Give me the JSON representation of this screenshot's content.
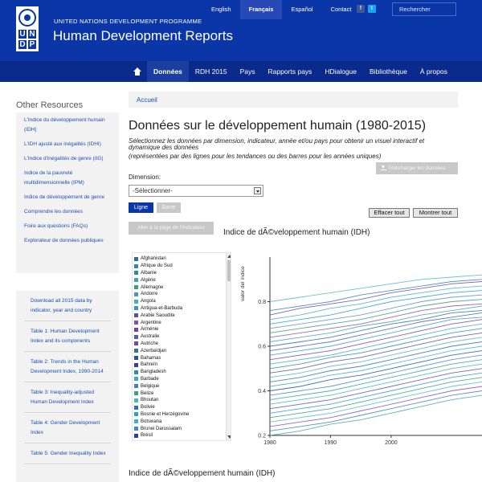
{
  "header": {
    "org": "UNITED NATIONS DEVELOPMENT PROGRAMME",
    "title": "Human Development Reports",
    "logo_letters": [
      "U",
      "N",
      "D",
      "P"
    ],
    "top_links": [
      "English",
      "Français",
      "Español",
      "Contact"
    ],
    "active_top_link": "Français",
    "social_icons": [
      "facebook-icon",
      "twitter-icon"
    ],
    "search_placeholder": "Rechercher",
    "colors": {
      "header_bg": "#0b36a8",
      "nav_bg": "#0a2a8c"
    }
  },
  "mainnav": {
    "home_icon": "home-icon",
    "items": [
      "Données",
      "RDH 2015",
      "Pays",
      "Rapports pays",
      "HDialogue",
      "Bibliothèque",
      "À propos"
    ],
    "active": "Données"
  },
  "sidebar": {
    "title": "Other Resources",
    "links": [
      "L'Indice du développement humain (IDH)",
      "L'IDH ajusté aux inégalités (IDHI)",
      "L'Indice d'inégalités de genre (IIG)",
      "Indice de la pauvreté multidimensionnelle (IPM)",
      "Indice de développement de genre",
      "Comprendre les données",
      "Foire aux questions (FAQs)",
      "Explorateur de données publiques"
    ],
    "downloads": [
      "Download all 2015 data by indicator, year and country",
      "Table 1: Human Development Index and its components",
      "Table 2: Trends in the Human Development Index, 1990-2014",
      "Table 3: Inequality-adjusted Human Development Index",
      "Table 4: Gender Development Index",
      "Table 5: Gender Inequality Index"
    ]
  },
  "content": {
    "breadcrumb": "Accueil",
    "title": "Données sur le développement humain (1980-2015)",
    "intro_line1": "Sélectionnez les données par dimension, indicateur, année et/ou pays pour obtenir un visuel interactif et dynamique des données",
    "intro_line2": "(représentées par des lignes pour les tendances ou des barres pour les années uniques)",
    "download_button": "Télécharger les données",
    "download_icon": "download-icon",
    "dimension_label": "Dimension:",
    "dimension_value": "-Sélectionner-",
    "btn_line": "Ligne",
    "btn_bar": "Barre",
    "btn_clear": "Effacer tout",
    "btn_show": "Montrer tout",
    "btn_indicator_page": "Aller à la page de l'indicateur",
    "chart_title": "Indice de dÃ©veloppement humain (IDH)",
    "chart_title_bottom": "Indice de dÃ©veloppement humain (IDH)"
  },
  "countries": [
    {
      "name": "Afghanistan",
      "color": "#2a6f97"
    },
    {
      "name": "Afrique du Sud",
      "color": "#3b7fb3"
    },
    {
      "name": "Albanie",
      "color": "#2f8f8f"
    },
    {
      "name": "Algérie",
      "color": "#4aa0a6"
    },
    {
      "name": "Allemagne",
      "color": "#3d9a7e"
    },
    {
      "name": "Andorre",
      "color": "#5a8fbf"
    },
    {
      "name": "Angola",
      "color": "#46b0b8"
    },
    {
      "name": "Antigua-et-Barbuda",
      "color": "#2e9ad0"
    },
    {
      "name": "Arabie Saoudite",
      "color": "#5b4d9b"
    },
    {
      "name": "Argentine",
      "color": "#8a4fb0"
    },
    {
      "name": "Arménie",
      "color": "#7a3f9d"
    },
    {
      "name": "Australie",
      "color": "#4d5fb0"
    },
    {
      "name": "Autriche",
      "color": "#6b4aa8"
    },
    {
      "name": "Azerbaïdjan",
      "color": "#3a6ea5"
    },
    {
      "name": "Bahamas",
      "color": "#2c4f9e"
    },
    {
      "name": "Bahreïn",
      "color": "#3f3f8f"
    },
    {
      "name": "Bangladesh",
      "color": "#2a8fa6"
    },
    {
      "name": "Barbade",
      "color": "#3fa8c0"
    },
    {
      "name": "Belgique",
      "color": "#4b7bc4"
    },
    {
      "name": "Belize",
      "color": "#3aa18f"
    },
    {
      "name": "Bhoutan",
      "color": "#4fb8a8"
    },
    {
      "name": "Bolivie",
      "color": "#2f6fb8"
    },
    {
      "name": "Bosnie et Herzégovine",
      "color": "#36a0b0"
    },
    {
      "name": "Botswana",
      "color": "#3bb0c8"
    },
    {
      "name": "Brunei Darussalam",
      "color": "#4a86c8"
    },
    {
      "name": "Brésil",
      "color": "#2a3f9e"
    }
  ],
  "chart_data": {
    "type": "line",
    "title": "Indice de dÃ©veloppement humain (IDH)",
    "ylabel": "valor del índice",
    "xlabel": "",
    "xlim": [
      1980,
      2015
    ],
    "ylim": [
      0.2,
      1.0
    ],
    "x_ticks": [
      1980,
      1990,
      2000
    ],
    "y_ticks": [
      0.2,
      0.4,
      0.6,
      0.8
    ],
    "x": [
      1980,
      1985,
      1990,
      1995,
      2000,
      2005,
      2010,
      2015
    ],
    "series": [
      {
        "values": [
          0.8,
          0.82,
          0.84,
          0.86,
          0.88,
          0.9,
          0.91,
          0.92
        ],
        "color": "#4fb8c8"
      },
      {
        "values": [
          0.76,
          0.78,
          0.8,
          0.83,
          0.85,
          0.87,
          0.89,
          0.9
        ],
        "color": "#3b7fb3"
      },
      {
        "values": [
          0.74,
          0.77,
          0.79,
          0.81,
          0.84,
          0.86,
          0.88,
          0.89
        ],
        "color": "#6b4aa8"
      },
      {
        "values": [
          0.72,
          0.74,
          0.77,
          0.79,
          0.82,
          0.84,
          0.86,
          0.87
        ],
        "color": "#46b0b8"
      },
      {
        "values": [
          0.7,
          0.72,
          0.74,
          0.77,
          0.8,
          0.82,
          0.84,
          0.85
        ],
        "color": "#2e9ad0"
      },
      {
        "values": [
          0.68,
          0.7,
          0.72,
          0.74,
          0.77,
          0.8,
          0.82,
          0.83
        ],
        "color": "#5a8fbf"
      },
      {
        "values": [
          0.66,
          0.68,
          0.7,
          0.72,
          0.75,
          0.78,
          0.8,
          0.81
        ],
        "color": "#3d9a7e"
      },
      {
        "values": [
          0.64,
          0.66,
          0.68,
          0.7,
          0.73,
          0.76,
          0.78,
          0.79
        ],
        "color": "#8a4fb0"
      },
      {
        "values": [
          0.62,
          0.64,
          0.66,
          0.69,
          0.71,
          0.74,
          0.76,
          0.78
        ],
        "color": "#4aa0a6"
      },
      {
        "values": [
          0.6,
          0.62,
          0.64,
          0.67,
          0.7,
          0.72,
          0.75,
          0.76
        ],
        "color": "#2a6f97"
      },
      {
        "values": [
          0.58,
          0.6,
          0.62,
          0.65,
          0.68,
          0.71,
          0.73,
          0.75
        ],
        "color": "#4d5fb0"
      },
      {
        "values": [
          0.56,
          0.58,
          0.6,
          0.63,
          0.66,
          0.69,
          0.72,
          0.73
        ],
        "color": "#36a0b0"
      },
      {
        "values": [
          0.54,
          0.56,
          0.58,
          0.61,
          0.64,
          0.67,
          0.7,
          0.72
        ],
        "color": "#7a3f9d"
      },
      {
        "values": [
          0.52,
          0.54,
          0.56,
          0.59,
          0.62,
          0.65,
          0.68,
          0.7
        ],
        "color": "#3fa8c0"
      },
      {
        "values": [
          0.5,
          0.52,
          0.55,
          0.57,
          0.6,
          0.63,
          0.66,
          0.68
        ],
        "color": "#2f8f8f"
      },
      {
        "values": [
          0.48,
          0.5,
          0.53,
          0.55,
          0.58,
          0.61,
          0.64,
          0.66
        ],
        "color": "#5b4d9b"
      },
      {
        "values": [
          0.46,
          0.48,
          0.51,
          0.53,
          0.56,
          0.59,
          0.62,
          0.64
        ],
        "color": "#4fb8a8"
      },
      {
        "values": [
          0.44,
          0.46,
          0.49,
          0.51,
          0.54,
          0.57,
          0.6,
          0.62
        ],
        "color": "#3a6ea5"
      },
      {
        "values": [
          0.42,
          0.44,
          0.47,
          0.49,
          0.52,
          0.55,
          0.58,
          0.6
        ],
        "color": "#3bb0c8"
      },
      {
        "values": [
          0.4,
          0.42,
          0.45,
          0.47,
          0.5,
          0.53,
          0.56,
          0.58
        ],
        "color": "#2c4f9e"
      },
      {
        "values": [
          0.38,
          0.4,
          0.42,
          0.45,
          0.48,
          0.51,
          0.54,
          0.56
        ],
        "color": "#4a86c8"
      },
      {
        "values": [
          0.36,
          0.38,
          0.4,
          0.43,
          0.46,
          0.49,
          0.52,
          0.54
        ],
        "color": "#3aa18f"
      },
      {
        "values": [
          0.34,
          0.36,
          0.38,
          0.41,
          0.44,
          0.47,
          0.5,
          0.52
        ],
        "color": "#46b0b8"
      },
      {
        "values": [
          0.32,
          0.34,
          0.36,
          0.39,
          0.42,
          0.45,
          0.48,
          0.5
        ],
        "color": "#6b4aa8"
      },
      {
        "values": [
          0.3,
          0.32,
          0.34,
          0.37,
          0.4,
          0.43,
          0.46,
          0.48
        ],
        "color": "#2e9ad0"
      },
      {
        "values": [
          0.28,
          0.3,
          0.32,
          0.35,
          0.38,
          0.41,
          0.44,
          0.46
        ],
        "color": "#3d9a7e"
      },
      {
        "values": [
          0.26,
          0.28,
          0.3,
          0.33,
          0.36,
          0.39,
          0.42,
          0.44
        ],
        "color": "#4fb8c8"
      },
      {
        "values": [
          0.24,
          0.26,
          0.28,
          0.31,
          0.34,
          0.37,
          0.4,
          0.42
        ],
        "color": "#8a4fb0"
      },
      {
        "values": [
          0.22,
          0.24,
          0.26,
          0.29,
          0.32,
          0.35,
          0.38,
          0.4
        ],
        "color": "#3b7fb3"
      },
      {
        "values": [
          0.2,
          0.22,
          0.25,
          0.27,
          0.3,
          0.33,
          0.36,
          0.38
        ],
        "color": "#4aa0a6"
      }
    ],
    "grid": false,
    "legend": "left-list"
  }
}
